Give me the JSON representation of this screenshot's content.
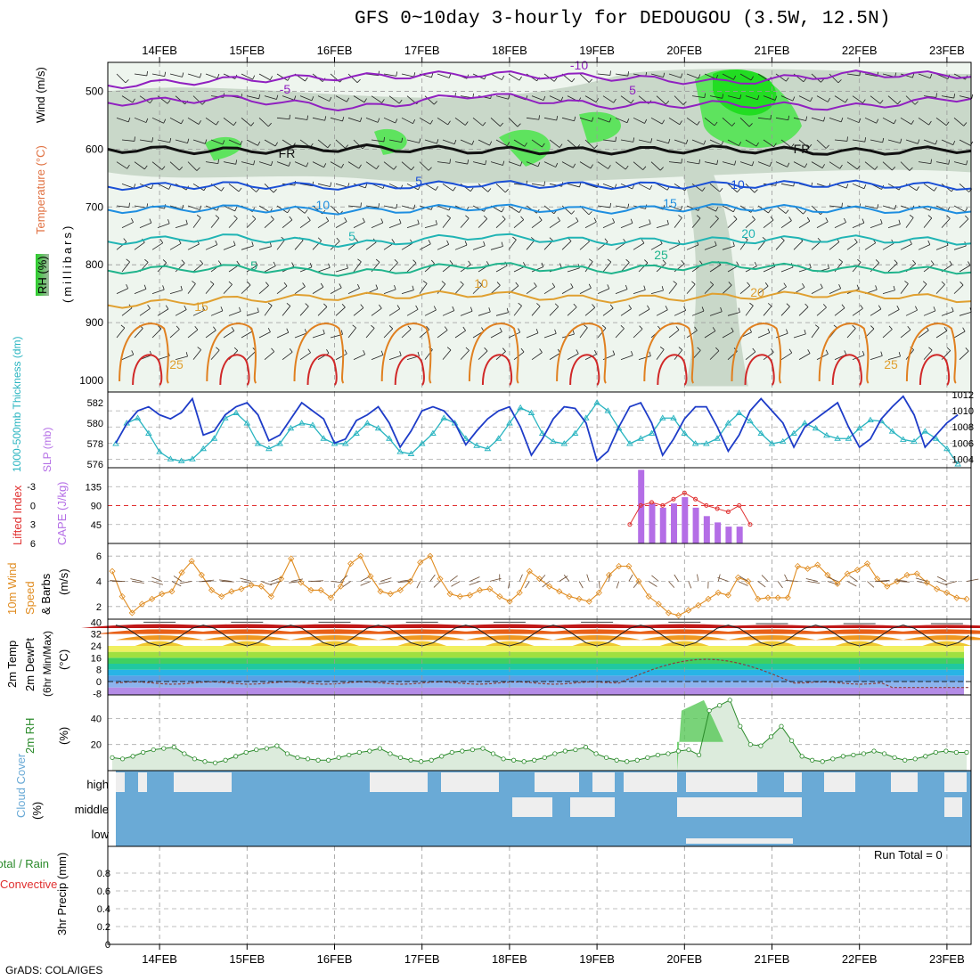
{
  "title": "GFS 0~10day 3-hourly for DEDOUGOU (3.5W, 12.5N)",
  "credit": "GrADS: COLA/IGES",
  "date_labels": [
    "14FEB",
    "15FEB",
    "16FEB",
    "17FEB",
    "18FEB",
    "19FEB",
    "20FEB",
    "21FEB",
    "22FEB",
    "23FEB"
  ],
  "panel_labels": {
    "wind": "Wind (m/s)",
    "temp": "Temperature (°C)",
    "millibars": "(millibars)",
    "rh": "RH (%)",
    "thickness": "1000-500mb Thickness (dm)",
    "slp": "SLP (mb)",
    "lifted": "Lifted Index",
    "cape": "CAPE (J/kg)",
    "wind10a": "10m Wind",
    "wind10b": "Speed",
    "wind10c": "& Barbs",
    "wind10d": "(m/s)",
    "t2a": "2m Temp",
    "t2b": "2m DewPt",
    "t2c": "(6hr Min/Max)",
    "t2d": "(°C)",
    "rh2a": "2m RH",
    "rh2b": "(%)",
    "cloud": "Cloud Cover",
    "cloudpct": "(%)",
    "precipa": "Total / Rain",
    "precipb": "Convective",
    "precipc": "3hr Precip (mm)"
  },
  "run_total": "Run Total = 0",
  "colors": {
    "slp": "#1e3cc8",
    "thickness": "#28b4c0",
    "cape": "#b46ee6",
    "lifted": "#e03030",
    "wind10": "#e08c20",
    "rh2m": "#2a8a2a",
    "cloud": "#6aaad6"
  },
  "chart_data": [
    {
      "type": "contour",
      "panel": "upper-air",
      "yaxis_label": "millibars",
      "yticks": [
        500,
        600,
        700,
        800,
        900,
        1000
      ],
      "ylim": [
        450,
        1020
      ],
      "temperature_contour_labels": [
        "-10",
        "-5",
        "5",
        "FR",
        "5",
        "10",
        "15",
        "20",
        "25",
        "-10",
        "5",
        "5",
        "10",
        "15",
        "20",
        "25",
        "25",
        "FR"
      ]
    },
    {
      "type": "line",
      "panel": "slp-thickness",
      "title": "SLP and 1000-500mb Thickness",
      "x_index": "3-hourly steps, day 0 = 14FEB 00Z",
      "slp_ticks": [
        1004,
        1006,
        1008,
        1010,
        1012
      ],
      "thickness_ticks": [
        576,
        578,
        580,
        582
      ],
      "series": [
        {
          "name": "SLP (mb)",
          "values": [
            1006,
            1008.4,
            1010,
            1010.5,
            1009.5,
            1009,
            1009.8,
            1011.5,
            1007,
            1007.5,
            1009.5,
            1010.5,
            1011,
            1009.5,
            1006.3,
            1007,
            1009,
            1011,
            1010,
            1009,
            1006,
            1006.5,
            1008.8,
            1009.5,
            1010.5,
            1008.5,
            1005.5,
            1007.5,
            1010,
            1010.5,
            1010,
            1008.5,
            1005.8,
            1007.5,
            1009,
            1010,
            1010.5,
            1008,
            1004.5,
            1006.5,
            1009,
            1010.5,
            1010.3,
            1008.5,
            1003.8,
            1005,
            1008,
            1010.5,
            1011,
            1008.5,
            1004.5,
            1006.5,
            1009,
            1010.5,
            1010.5,
            1008,
            1005,
            1007,
            1010,
            1011.5,
            1010,
            1008.5,
            1005.5,
            1008,
            1009,
            1010,
            1011,
            1008,
            1005.5,
            1006.5,
            1009,
            1010.5,
            1011.8,
            1009.5,
            1005.5,
            1007,
            1008.5,
            1009.5
          ]
        },
        {
          "name": "1000-500mb Thickness (dm)",
          "values": [
            578,
            580,
            580.5,
            579,
            577.2,
            576.5,
            576.3,
            576.5,
            577.5,
            578.5,
            580.5,
            581,
            580,
            578,
            577.5,
            578,
            579.5,
            580,
            579.8,
            578.5,
            578,
            578,
            579,
            580,
            579.5,
            578.5,
            577.2,
            577,
            578,
            579,
            580.5,
            580,
            578.5,
            577.8,
            577.5,
            578.5,
            580,
            581.5,
            581,
            579,
            578.2,
            578,
            579,
            580.5,
            582,
            581.2,
            579.5,
            578,
            578.5,
            579,
            580.5,
            580.5,
            579,
            578,
            578,
            578.5,
            580,
            581,
            580.2,
            579,
            578,
            578.2,
            579,
            580,
            579.5,
            578.8,
            578.5,
            578.5,
            579.5,
            580.3,
            580.2,
            579.2,
            578.4,
            578.2,
            579.2,
            578.5,
            577.5,
            576
          ]
        }
      ]
    },
    {
      "type": "bar",
      "panel": "cape-lifted",
      "title": "CAPE (J/kg) and Lifted Index",
      "cape_ticks": [
        45,
        90,
        135
      ],
      "lifted_index_ticks": [
        -3,
        0,
        3,
        6
      ],
      "cape_values_from_20FEB": [
        175,
        95,
        85,
        95,
        110,
        85,
        65,
        50,
        40,
        40
      ],
      "lifted_index_from_19FEB21Z": [
        3,
        0,
        -0.5,
        0,
        -1,
        -2,
        -1,
        0,
        0.5,
        1,
        0,
        3
      ]
    },
    {
      "type": "line",
      "panel": "10m-wind",
      "title": "10m Wind Speed & Barbs",
      "yticks": [
        2,
        4,
        6
      ],
      "ylim": [
        1,
        7
      ],
      "series": [
        {
          "name": "10m Wind Speed (m/s)",
          "values": [
            4.8,
            2.8,
            1.5,
            2.2,
            2.6,
            3.0,
            3.2,
            4.7,
            5.6,
            4.5,
            3.3,
            2.8,
            3.2,
            3.4,
            3.7,
            3.6,
            2.8,
            4.2,
            5.8,
            3.9,
            3.3,
            3.3,
            2.7,
            3.6,
            5.4,
            6.0,
            4.4,
            3.2,
            3.0,
            3.3,
            4.0,
            5.5,
            6.0,
            4.2,
            3.0,
            2.8,
            2.9,
            3.3,
            3.4,
            2.8,
            2.4,
            3.1,
            4.8,
            4.2,
            3.6,
            3.2,
            2.8,
            2.6,
            2.4,
            3.1,
            4.5,
            5.2,
            5.2,
            4.0,
            2.8,
            2.2,
            1.5,
            1.3,
            1.7,
            2.1,
            2.6,
            3.1,
            2.9,
            4.3,
            4.0,
            2.6,
            2.7,
            2.7,
            2.7,
            5.2,
            5.0,
            5.3,
            4.5,
            3.8,
            4.6,
            4.9,
            5.4,
            4.2,
            3.6,
            4.0,
            4.5,
            4.6,
            3.9,
            3.4,
            3.1,
            2.7,
            2.6
          ]
        }
      ]
    },
    {
      "type": "area",
      "panel": "2m-temp-dewpt",
      "title": "2m Temp and 2m DewPt (6hr Min/Max)",
      "yticks": [
        -8,
        0,
        8,
        16,
        24,
        32,
        40
      ],
      "daily_max_temp": [
        39,
        39,
        39,
        39,
        39,
        39,
        39,
        38,
        38,
        38
      ],
      "daily_min_temp": [
        24,
        24,
        24,
        23,
        24,
        24,
        24,
        24,
        24,
        22
      ],
      "dewpoint_peak_20FEB": 16,
      "dewpoint_typical": -1
    },
    {
      "type": "area",
      "panel": "2m-rh",
      "title": "2m RH (%)",
      "yticks": [
        20,
        40
      ],
      "series": [
        {
          "name": "2m RH (%)",
          "values": [
            10,
            9,
            11,
            14,
            16,
            17,
            18,
            13,
            9,
            7,
            6,
            8,
            11,
            14,
            16,
            17,
            19,
            13,
            10,
            9,
            8,
            8,
            10,
            12,
            14,
            15,
            17,
            13,
            10,
            8,
            7,
            8,
            11,
            14,
            15,
            16,
            17,
            13,
            9,
            8,
            7,
            8,
            10,
            13,
            15,
            16,
            18,
            13,
            10,
            8,
            7,
            8,
            10,
            12,
            13,
            15,
            16,
            12,
            46,
            50,
            54,
            34,
            20,
            19,
            26,
            34,
            23,
            11,
            8,
            7,
            9,
            11,
            12,
            13,
            15,
            13,
            10,
            8,
            9,
            11,
            14,
            15,
            14,
            14
          ]
        }
      ]
    },
    {
      "type": "heatmap",
      "panel": "cloud-cover",
      "title": "Cloud Cover (%)",
      "rows": [
        "high",
        "middle",
        "low"
      ]
    },
    {
      "type": "bar",
      "panel": "precip",
      "title": "3hr Precip (mm)",
      "yticks": [
        0,
        0.2,
        0.4,
        0.6,
        0.8
      ],
      "ylim": [
        0,
        1
      ],
      "values": []
    }
  ]
}
